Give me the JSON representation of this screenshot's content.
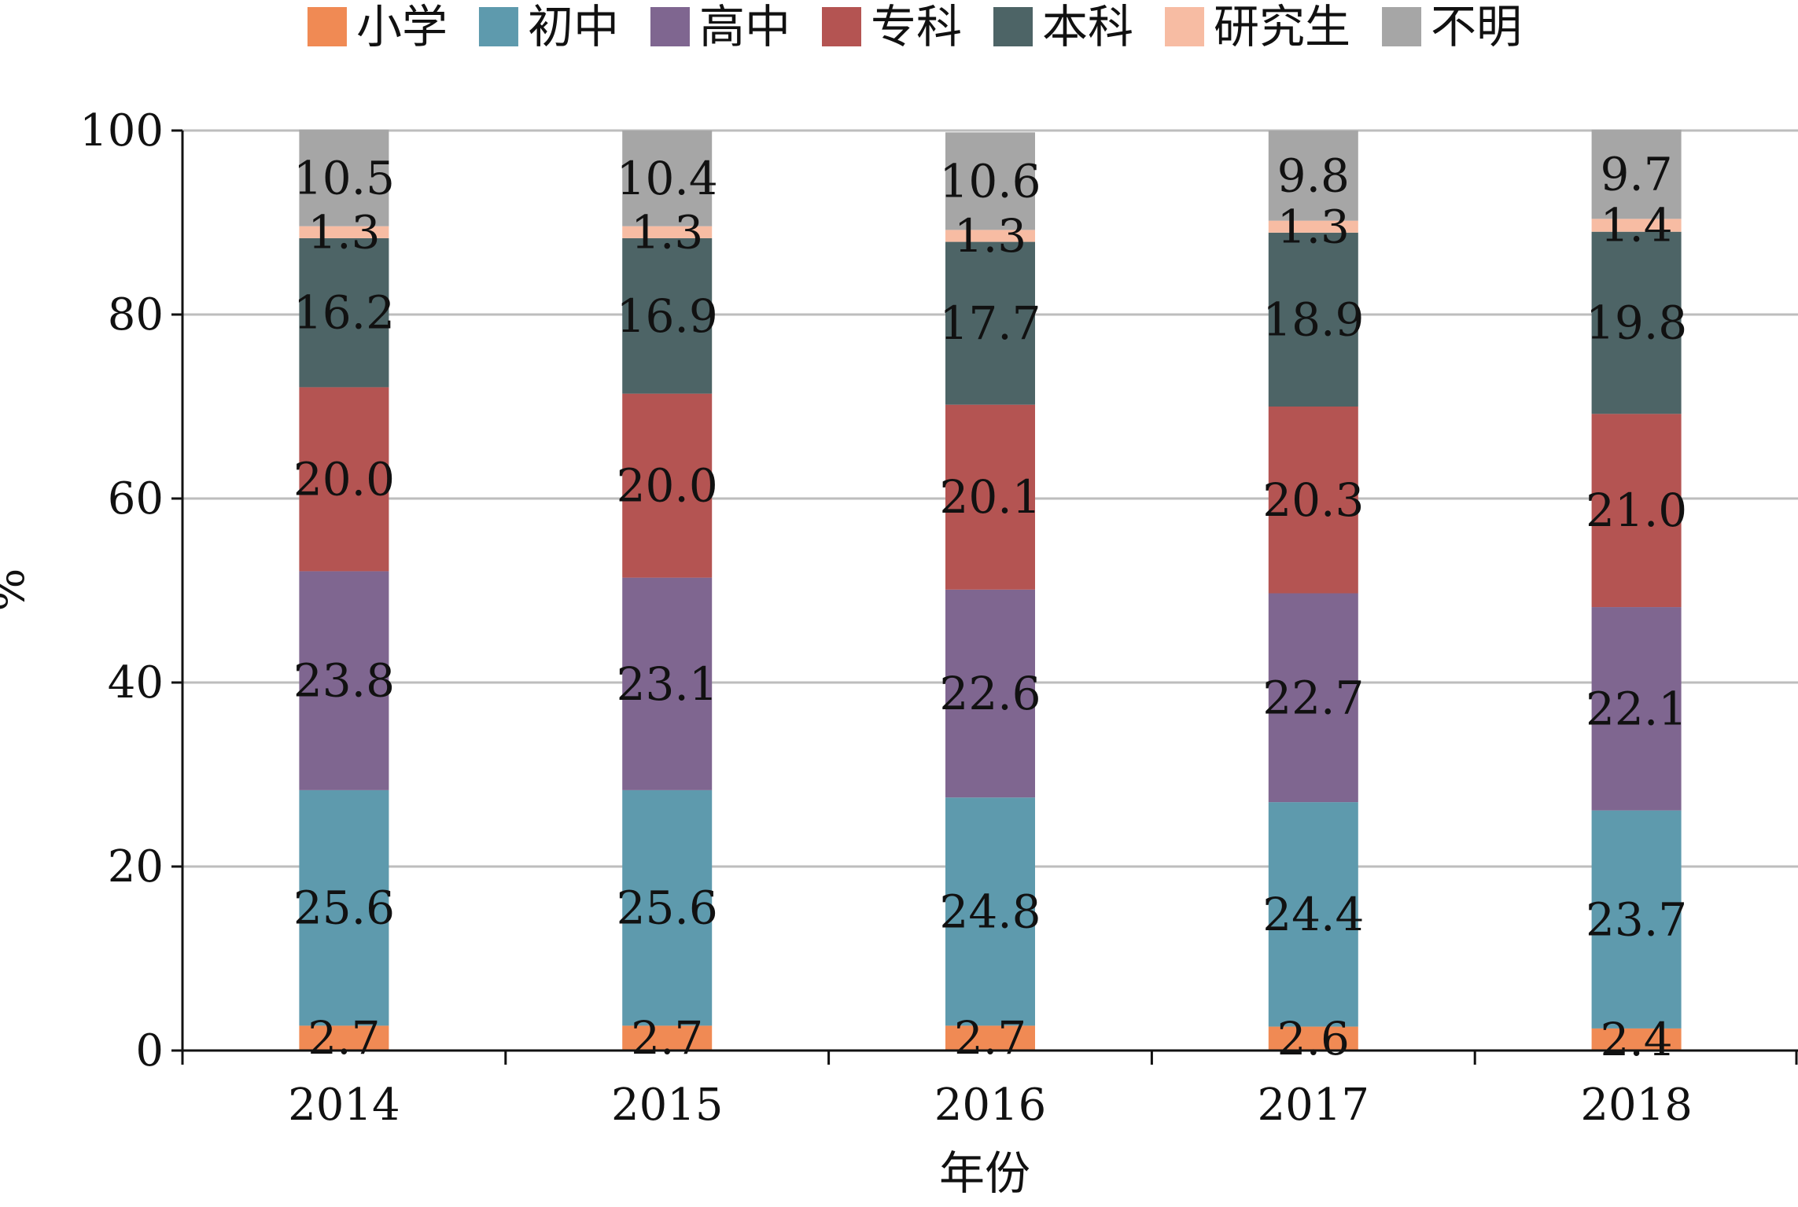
{
  "chart_data": {
    "type": "bar",
    "stacked": true,
    "categories": [
      "2014",
      "2015",
      "2016",
      "2017",
      "2018"
    ],
    "series": [
      {
        "name": "小学",
        "color": "#f08a54",
        "values": [
          2.7,
          2.7,
          2.7,
          2.6,
          2.4
        ]
      },
      {
        "name": "初中",
        "color": "#5e9aad",
        "values": [
          25.6,
          25.6,
          24.8,
          24.4,
          23.7
        ]
      },
      {
        "name": "高中",
        "color": "#7f6690",
        "values": [
          23.8,
          23.1,
          22.6,
          22.7,
          22.1
        ]
      },
      {
        "name": "专科",
        "color": "#b45452",
        "values": [
          20.0,
          20.0,
          20.1,
          20.3,
          21.0
        ]
      },
      {
        "name": "本科",
        "color": "#4d6466",
        "values": [
          16.2,
          16.9,
          17.7,
          18.9,
          19.8
        ]
      },
      {
        "name": "研究生",
        "color": "#f7bca3",
        "values": [
          1.3,
          1.3,
          1.3,
          1.3,
          1.4
        ]
      },
      {
        "name": "不明",
        "color": "#a6a6a6",
        "values": [
          10.5,
          10.4,
          10.6,
          9.8,
          9.7
        ]
      }
    ],
    "value_labels": [
      [
        "2.7",
        "2.7",
        "2.7",
        "2.6",
        "2.4"
      ],
      [
        "25.6",
        "25.6",
        "24.8",
        "24.4",
        "23.7"
      ],
      [
        "23.8",
        "23.1",
        "22.6",
        "22.7",
        "22.1"
      ],
      [
        "20.0",
        "20.0",
        "20.1",
        "20.3",
        "21.0"
      ],
      [
        "16.2",
        "16.9",
        "17.7",
        "18.9",
        "19.8"
      ],
      [
        "1.3",
        "1.3",
        "1.3",
        "1.3",
        "1.4"
      ],
      [
        "10.5",
        "10.4",
        "10.6",
        "9.8",
        "9.7"
      ]
    ],
    "xlabel": "年份",
    "ylabel": "%",
    "ylim": [
      0,
      100
    ],
    "yticks": [
      "0",
      "20",
      "40",
      "60",
      "80",
      "100"
    ],
    "grid": true,
    "legend_position": "top"
  }
}
